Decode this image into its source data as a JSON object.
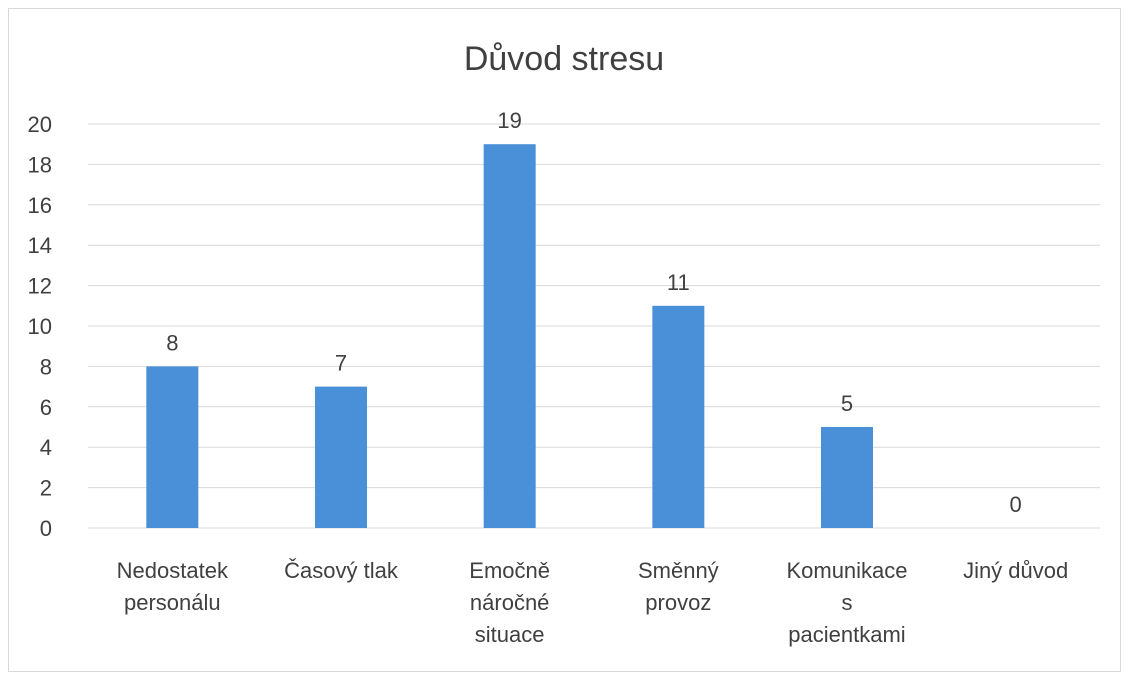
{
  "chart_data": {
    "type": "bar",
    "title": "Důvod stresu",
    "categories": [
      [
        "Nedostatek",
        "personálu"
      ],
      [
        "Časový tlak"
      ],
      [
        "Emočně",
        "náročné",
        "situace"
      ],
      [
        "Směnný",
        "provoz"
      ],
      [
        "Komunikace",
        "s",
        "pacientkami"
      ],
      [
        "Jiný důvod"
      ]
    ],
    "values": [
      8,
      7,
      19,
      11,
      5,
      0
    ],
    "ylim": [
      0,
      20
    ],
    "yticks": [
      0,
      2,
      4,
      6,
      8,
      10,
      12,
      14,
      16,
      18,
      20
    ],
    "grid": true,
    "data_labels": true,
    "bar_color": "#4a90d9"
  }
}
